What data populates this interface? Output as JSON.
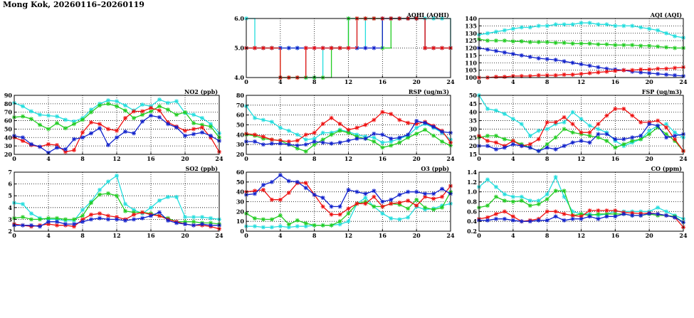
{
  "page": {
    "title": "Mong Kok, 20260116–20260119"
  },
  "colors": {
    "red": "#ee1111",
    "blue": "#1122cc",
    "green": "#22cc22",
    "cyan": "#22dddd",
    "grid": "#000000"
  },
  "chart_data": [
    {
      "id": "aqhi",
      "type": "line",
      "title": "AQHI (AQHI)",
      "xlabel": "",
      "ylabel": "",
      "xlim": [
        0,
        24
      ],
      "ylim": [
        4.0,
        6.0
      ],
      "step": true,
      "xticks": [
        0,
        4,
        8,
        12,
        16,
        20,
        24
      ],
      "yticks": [
        4.0,
        5.0,
        6.0
      ],
      "tick_decimals": 1,
      "series": [
        {
          "color": "cyan",
          "values": [
            6,
            5,
            5,
            5,
            5,
            5,
            5,
            4,
            4,
            5,
            5,
            5,
            6,
            5,
            6,
            6,
            6,
            6,
            6,
            6,
            6,
            6,
            6,
            6,
            5
          ]
        },
        {
          "color": "green",
          "values": [
            5,
            5,
            5,
            5,
            4,
            4,
            4,
            4,
            4,
            4,
            5,
            5,
            6,
            6,
            6,
            6,
            5,
            6,
            6,
            6,
            6,
            5,
            5,
            5,
            5
          ]
        },
        {
          "color": "blue",
          "values": [
            5,
            5,
            5,
            5,
            5,
            5,
            5,
            5,
            5,
            5,
            5,
            5,
            5,
            5,
            5,
            5,
            6,
            6,
            6,
            6,
            6,
            5,
            5,
            5,
            5
          ]
        },
        {
          "color": "red",
          "values": [
            5,
            5,
            5,
            5,
            4,
            4,
            4,
            5,
            5,
            5,
            5,
            5,
            5,
            6,
            6,
            6,
            6,
            6,
            6,
            6,
            6,
            5,
            5,
            5,
            5
          ]
        }
      ]
    },
    {
      "id": "aqi",
      "type": "line",
      "title": "AQI (AQI)",
      "xlabel": "",
      "ylabel": "",
      "xlim": [
        0,
        24
      ],
      "ylim": [
        100,
        140
      ],
      "xticks": [
        0,
        4,
        8,
        12,
        16,
        20,
        24
      ],
      "yticks": [
        100,
        105,
        110,
        115,
        120,
        125,
        130,
        135,
        140
      ],
      "tick_decimals": 0,
      "series": [
        {
          "color": "cyan",
          "values": [
            129,
            130,
            131,
            132,
            133,
            134,
            134,
            135,
            135,
            136,
            136,
            136,
            137,
            137,
            136,
            136,
            135,
            135,
            135,
            134,
            133,
            132,
            130,
            128,
            127
          ]
        },
        {
          "color": "green",
          "values": [
            126,
            125,
            125,
            125,
            124.5,
            124.5,
            124,
            124,
            124,
            123.5,
            123.5,
            123,
            123,
            123,
            122.5,
            122.5,
            122,
            122,
            122,
            121.5,
            121.5,
            121,
            120.5,
            120,
            120
          ]
        },
        {
          "color": "blue",
          "values": [
            120,
            119,
            118,
            117,
            116,
            115,
            114,
            113,
            112.5,
            112,
            111,
            110,
            109,
            108,
            107,
            106,
            105.5,
            105,
            104,
            103.5,
            103,
            102.5,
            102,
            101.5,
            101
          ]
        },
        {
          "color": "red",
          "values": [
            100,
            100,
            100.5,
            100.5,
            101,
            101,
            101,
            101.5,
            101.5,
            101.5,
            102,
            102,
            102.5,
            103,
            103.5,
            104,
            104.5,
            105,
            105,
            105.5,
            105.5,
            106,
            106,
            106.5,
            107
          ]
        }
      ]
    },
    {
      "id": "no2",
      "type": "line",
      "title": "NO2 (ppb)",
      "xlabel": "",
      "ylabel": "",
      "xlim": [
        0,
        24
      ],
      "ylim": [
        20,
        90
      ],
      "xticks": [
        0,
        4,
        8,
        12,
        16,
        20,
        24
      ],
      "yticks": [
        20,
        30,
        40,
        50,
        60,
        70,
        80,
        90
      ],
      "tick_decimals": 0,
      "series": [
        {
          "color": "cyan",
          "values": [
            81,
            77,
            71,
            67,
            66,
            65,
            61,
            59,
            63,
            73,
            80,
            84,
            83,
            78,
            72,
            79,
            77,
            85,
            81,
            83,
            69,
            67,
            63,
            56,
            45
          ]
        },
        {
          "color": "green",
          "values": [
            64,
            65,
            62,
            55,
            50,
            57,
            51,
            56,
            61,
            70,
            78,
            80,
            77,
            72,
            63,
            67,
            71,
            77,
            73,
            67,
            70,
            57,
            55,
            53,
            40
          ]
        },
        {
          "color": "red",
          "values": [
            40,
            36,
            31,
            29,
            32,
            31,
            23,
            25,
            46,
            58,
            56,
            50,
            48,
            63,
            71,
            71,
            75,
            72,
            58,
            53,
            48,
            50,
            52,
            40,
            23
          ]
        },
        {
          "color": "blue",
          "values": [
            42,
            40,
            32,
            29,
            22,
            28,
            26,
            38,
            40,
            45,
            51,
            31,
            40,
            47,
            45,
            59,
            66,
            64,
            56,
            52,
            42,
            44,
            46,
            42,
            36
          ]
        }
      ]
    },
    {
      "id": "rsp",
      "type": "line",
      "title": "RSP (ug/m3)",
      "xlabel": "",
      "ylabel": "",
      "xlim": [
        0,
        24
      ],
      "ylim": [
        20,
        80
      ],
      "xticks": [
        0,
        4,
        8,
        12,
        16,
        20,
        24
      ],
      "yticks": [
        20,
        30,
        40,
        50,
        60,
        70,
        80
      ],
      "tick_decimals": 0,
      "series": [
        {
          "color": "cyan",
          "values": [
            69,
            57,
            55,
            53,
            47,
            44,
            40,
            35,
            36,
            42,
            42,
            45,
            43,
            40,
            38,
            37,
            32,
            33,
            36,
            39,
            47,
            51,
            47,
            42,
            35
          ]
        },
        {
          "color": "green",
          "values": [
            40,
            39,
            36,
            35,
            34,
            30,
            26,
            23,
            30,
            35,
            40,
            44,
            42,
            38,
            36,
            33,
            27,
            29,
            32,
            37,
            41,
            45,
            39,
            33,
            29
          ]
        },
        {
          "color": "red",
          "values": [
            41,
            40,
            38,
            35,
            34,
            33,
            34,
            40,
            42,
            51,
            57,
            51,
            45,
            47,
            50,
            55,
            63,
            61,
            55,
            52,
            51,
            53,
            49,
            44,
            32
          ]
        },
        {
          "color": "blue",
          "values": [
            33,
            33,
            30,
            31,
            31,
            30,
            29,
            30,
            33,
            32,
            31,
            32,
            34,
            36,
            36,
            41,
            40,
            36,
            37,
            40,
            54,
            52,
            48,
            43,
            42
          ]
        }
      ]
    },
    {
      "id": "fsp",
      "type": "line",
      "title": "FSP (ug/m3)",
      "xlabel": "",
      "ylabel": "",
      "xlim": [
        0,
        24
      ],
      "ylim": [
        15,
        50
      ],
      "xticks": [
        0,
        4,
        8,
        12,
        16,
        20,
        24
      ],
      "yticks": [
        15,
        20,
        25,
        30,
        35,
        40,
        45,
        50
      ],
      "tick_decimals": 0,
      "series": [
        {
          "color": "cyan",
          "values": [
            50,
            42,
            41,
            39,
            36,
            33,
            26,
            29,
            30,
            33,
            34,
            40,
            36,
            32,
            30,
            28,
            23,
            20,
            22,
            24,
            29,
            32,
            33,
            28,
            25
          ]
        },
        {
          "color": "green",
          "values": [
            25,
            26,
            26,
            24,
            23,
            21,
            19,
            17,
            21,
            25,
            30,
            28,
            27,
            26,
            25,
            23,
            19,
            21,
            23,
            24,
            27,
            31,
            27,
            23,
            17
          ]
        },
        {
          "color": "red",
          "values": [
            26,
            23,
            22,
            20,
            23,
            20,
            21,
            24,
            34,
            34,
            37,
            33,
            28,
            28,
            33,
            38,
            42,
            42,
            38,
            34,
            34,
            35,
            31,
            24,
            17
          ]
        },
        {
          "color": "blue",
          "values": [
            20,
            20,
            18,
            19,
            21,
            20,
            19,
            17,
            19,
            18,
            20,
            22,
            23,
            22,
            27,
            27,
            24,
            24,
            25,
            26,
            33,
            32,
            25,
            26,
            27
          ]
        }
      ]
    },
    {
      "id": "so2",
      "type": "line",
      "title": "SO2 (ppb)",
      "xlabel": "",
      "ylabel": "",
      "xlim": [
        0,
        24
      ],
      "ylim": [
        2,
        7
      ],
      "xticks": [
        0,
        4,
        8,
        12,
        16,
        20,
        24
      ],
      "yticks": [
        2,
        3,
        4,
        5,
        6,
        7
      ],
      "tick_decimals": 0,
      "series": [
        {
          "color": "cyan",
          "values": [
            4.4,
            4.3,
            3.5,
            3.1,
            3.0,
            3.0,
            2.9,
            2.9,
            3.8,
            4.5,
            5.5,
            6.2,
            6.7,
            4.3,
            3.8,
            3.5,
            4.0,
            4.6,
            4.9,
            4.9,
            3.2,
            3.2,
            3.2,
            3.1,
            3.0
          ]
        },
        {
          "color": "green",
          "values": [
            3.1,
            3.2,
            3.0,
            3.0,
            3.1,
            3.1,
            3.0,
            3.0,
            3.3,
            4.4,
            5.1,
            5.2,
            5.0,
            3.7,
            3.6,
            3.6,
            3.5,
            3.3,
            3.1,
            2.8,
            2.8,
            2.8,
            2.7,
            2.7,
            2.6
          ]
        },
        {
          "color": "red",
          "values": [
            2.6,
            2.5,
            2.4,
            2.5,
            2.6,
            2.5,
            2.5,
            2.4,
            3.0,
            3.4,
            3.5,
            3.3,
            3.2,
            3.0,
            3.4,
            3.6,
            3.4,
            3.3,
            3.0,
            2.8,
            2.6,
            2.5,
            2.5,
            2.4,
            2.2
          ]
        },
        {
          "color": "blue",
          "values": [
            2.5,
            2.5,
            2.5,
            2.4,
            2.8,
            2.8,
            2.6,
            2.6,
            2.8,
            3.0,
            3.1,
            3.0,
            3.0,
            2.9,
            3.0,
            3.1,
            3.3,
            3.6,
            2.9,
            2.7,
            2.6,
            2.5,
            2.6,
            2.5,
            2.5
          ]
        }
      ]
    },
    {
      "id": "o3",
      "type": "line",
      "title": "O3 (ppb)",
      "xlabel": "",
      "ylabel": "",
      "xlim": [
        0,
        24
      ],
      "ylim": [
        0,
        60
      ],
      "xticks": [
        0,
        4,
        8,
        12,
        16,
        20,
        24
      ],
      "yticks": [
        0,
        10,
        20,
        30,
        40,
        50,
        60
      ],
      "tick_decimals": 0,
      "series": [
        {
          "color": "cyan",
          "values": [
            5,
            5,
            4,
            4,
            5,
            4,
            5,
            5,
            6,
            6,
            6,
            7,
            10,
            28,
            34,
            25,
            18,
            13,
            12,
            14,
            25,
            22,
            23,
            26,
            28
          ]
        },
        {
          "color": "green",
          "values": [
            18,
            13,
            12,
            12,
            16,
            7,
            11,
            8,
            6,
            6,
            6,
            10,
            18,
            28,
            30,
            25,
            25,
            28,
            27,
            23,
            32,
            24,
            22,
            24,
            40
          ]
        },
        {
          "color": "red",
          "values": [
            40,
            41,
            42,
            32,
            32,
            39,
            49,
            49,
            37,
            25,
            17,
            17,
            23,
            28,
            28,
            35,
            25,
            28,
            29,
            31,
            26,
            35,
            33,
            35,
            46
          ]
        },
        {
          "color": "blue",
          "values": [
            37,
            38,
            47,
            50,
            57,
            51,
            50,
            44,
            37,
            34,
            25,
            25,
            42,
            40,
            38,
            41,
            30,
            32,
            37,
            40,
            40,
            38,
            38,
            43,
            38
          ]
        }
      ]
    },
    {
      "id": "co",
      "type": "line",
      "title": "CO (ppm)",
      "xlabel": "",
      "ylabel": "",
      "xlim": [
        0,
        24
      ],
      "ylim": [
        0.2,
        1.4
      ],
      "xticks": [
        0,
        4,
        8,
        12,
        16,
        20,
        24
      ],
      "yticks": [
        0.2,
        0.4,
        0.6,
        0.8,
        1.0,
        1.2,
        1.4
      ],
      "tick_decimals": 1,
      "series": [
        {
          "color": "cyan",
          "values": [
            1.1,
            1.25,
            1.1,
            0.95,
            0.9,
            0.9,
            0.82,
            0.82,
            0.95,
            1.3,
            0.9,
            0.6,
            0.55,
            0.55,
            0.52,
            0.55,
            0.6,
            0.6,
            0.6,
            0.6,
            0.6,
            0.68,
            0.6,
            0.52,
            0.45
          ]
        },
        {
          "color": "green",
          "values": [
            0.68,
            0.72,
            0.9,
            0.82,
            0.8,
            0.82,
            0.72,
            0.75,
            0.85,
            1.02,
            1.02,
            0.52,
            0.55,
            0.52,
            0.55,
            0.55,
            0.55,
            0.55,
            0.52,
            0.52,
            0.55,
            0.52,
            0.52,
            0.5,
            0.38
          ]
        },
        {
          "color": "red",
          "values": [
            0.45,
            0.48,
            0.55,
            0.6,
            0.5,
            0.4,
            0.42,
            0.45,
            0.6,
            0.6,
            0.55,
            0.52,
            0.5,
            0.62,
            0.62,
            0.62,
            0.62,
            0.58,
            0.57,
            0.56,
            0.57,
            0.55,
            0.52,
            0.48,
            0.28
          ]
        },
        {
          "color": "blue",
          "values": [
            0.42,
            0.42,
            0.45,
            0.45,
            0.42,
            0.4,
            0.4,
            0.42,
            0.42,
            0.5,
            0.42,
            0.45,
            0.45,
            0.5,
            0.45,
            0.5,
            0.5,
            0.55,
            0.52,
            0.52,
            0.56,
            0.55,
            0.52,
            0.48,
            0.38
          ]
        }
      ]
    }
  ]
}
